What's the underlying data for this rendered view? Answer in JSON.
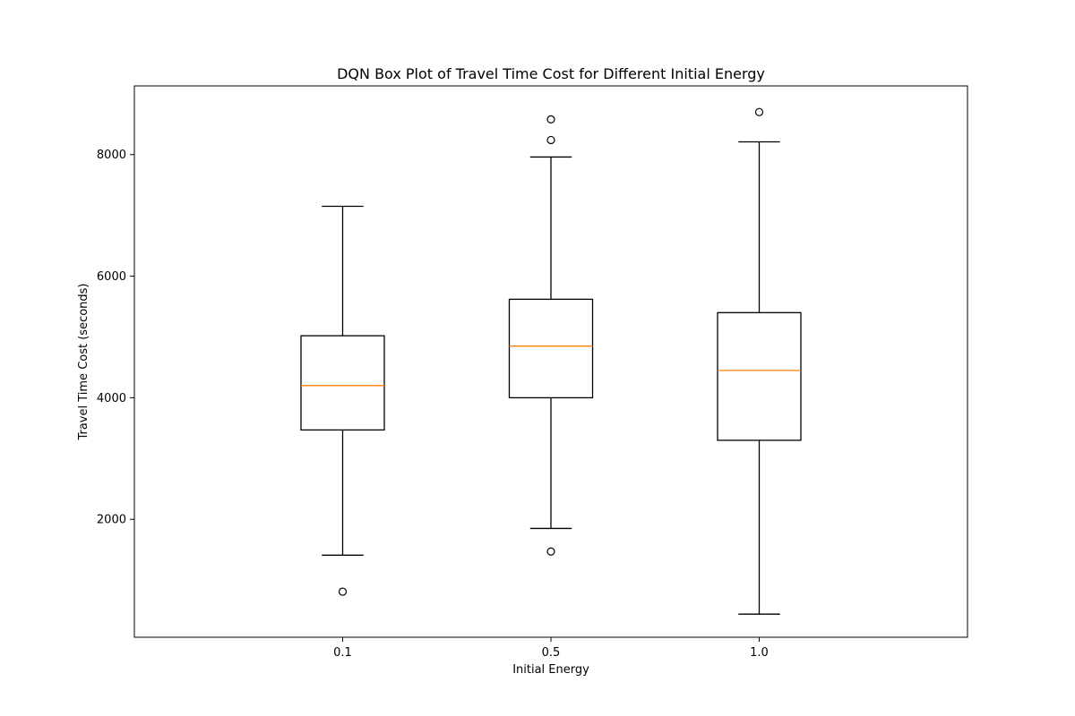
{
  "chart_data": {
    "type": "box",
    "title": "DQN Box Plot of Travel Time Cost for Different Initial Energy",
    "xlabel": "Initial Energy",
    "ylabel": "Travel Time Cost (seconds)",
    "categories": [
      "0.1",
      "0.5",
      "1.0"
    ],
    "ylim": [
      60,
      9130
    ],
    "yticks": [
      2000,
      4000,
      6000,
      8000
    ],
    "yticklabels": [
      "2000",
      "4000",
      "6000",
      "8000"
    ],
    "grid": false,
    "boxes": [
      {
        "category": "0.1",
        "whisker_low": 1410,
        "q1": 3470,
        "median": 4200,
        "q3": 5020,
        "whisker_high": 7150,
        "outliers": [
          810
        ]
      },
      {
        "category": "0.5",
        "whisker_low": 1850,
        "q1": 4000,
        "median": 4850,
        "q3": 5620,
        "whisker_high": 7960,
        "outliers": [
          1470,
          8240,
          8580
        ]
      },
      {
        "category": "1.0",
        "whisker_low": 440,
        "q1": 3300,
        "median": 4450,
        "q3": 5400,
        "whisker_high": 8210,
        "outliers": [
          8700
        ]
      }
    ],
    "colors": {
      "box": "#000000",
      "median": "#ff7f0e",
      "outlier": "#000000"
    }
  }
}
